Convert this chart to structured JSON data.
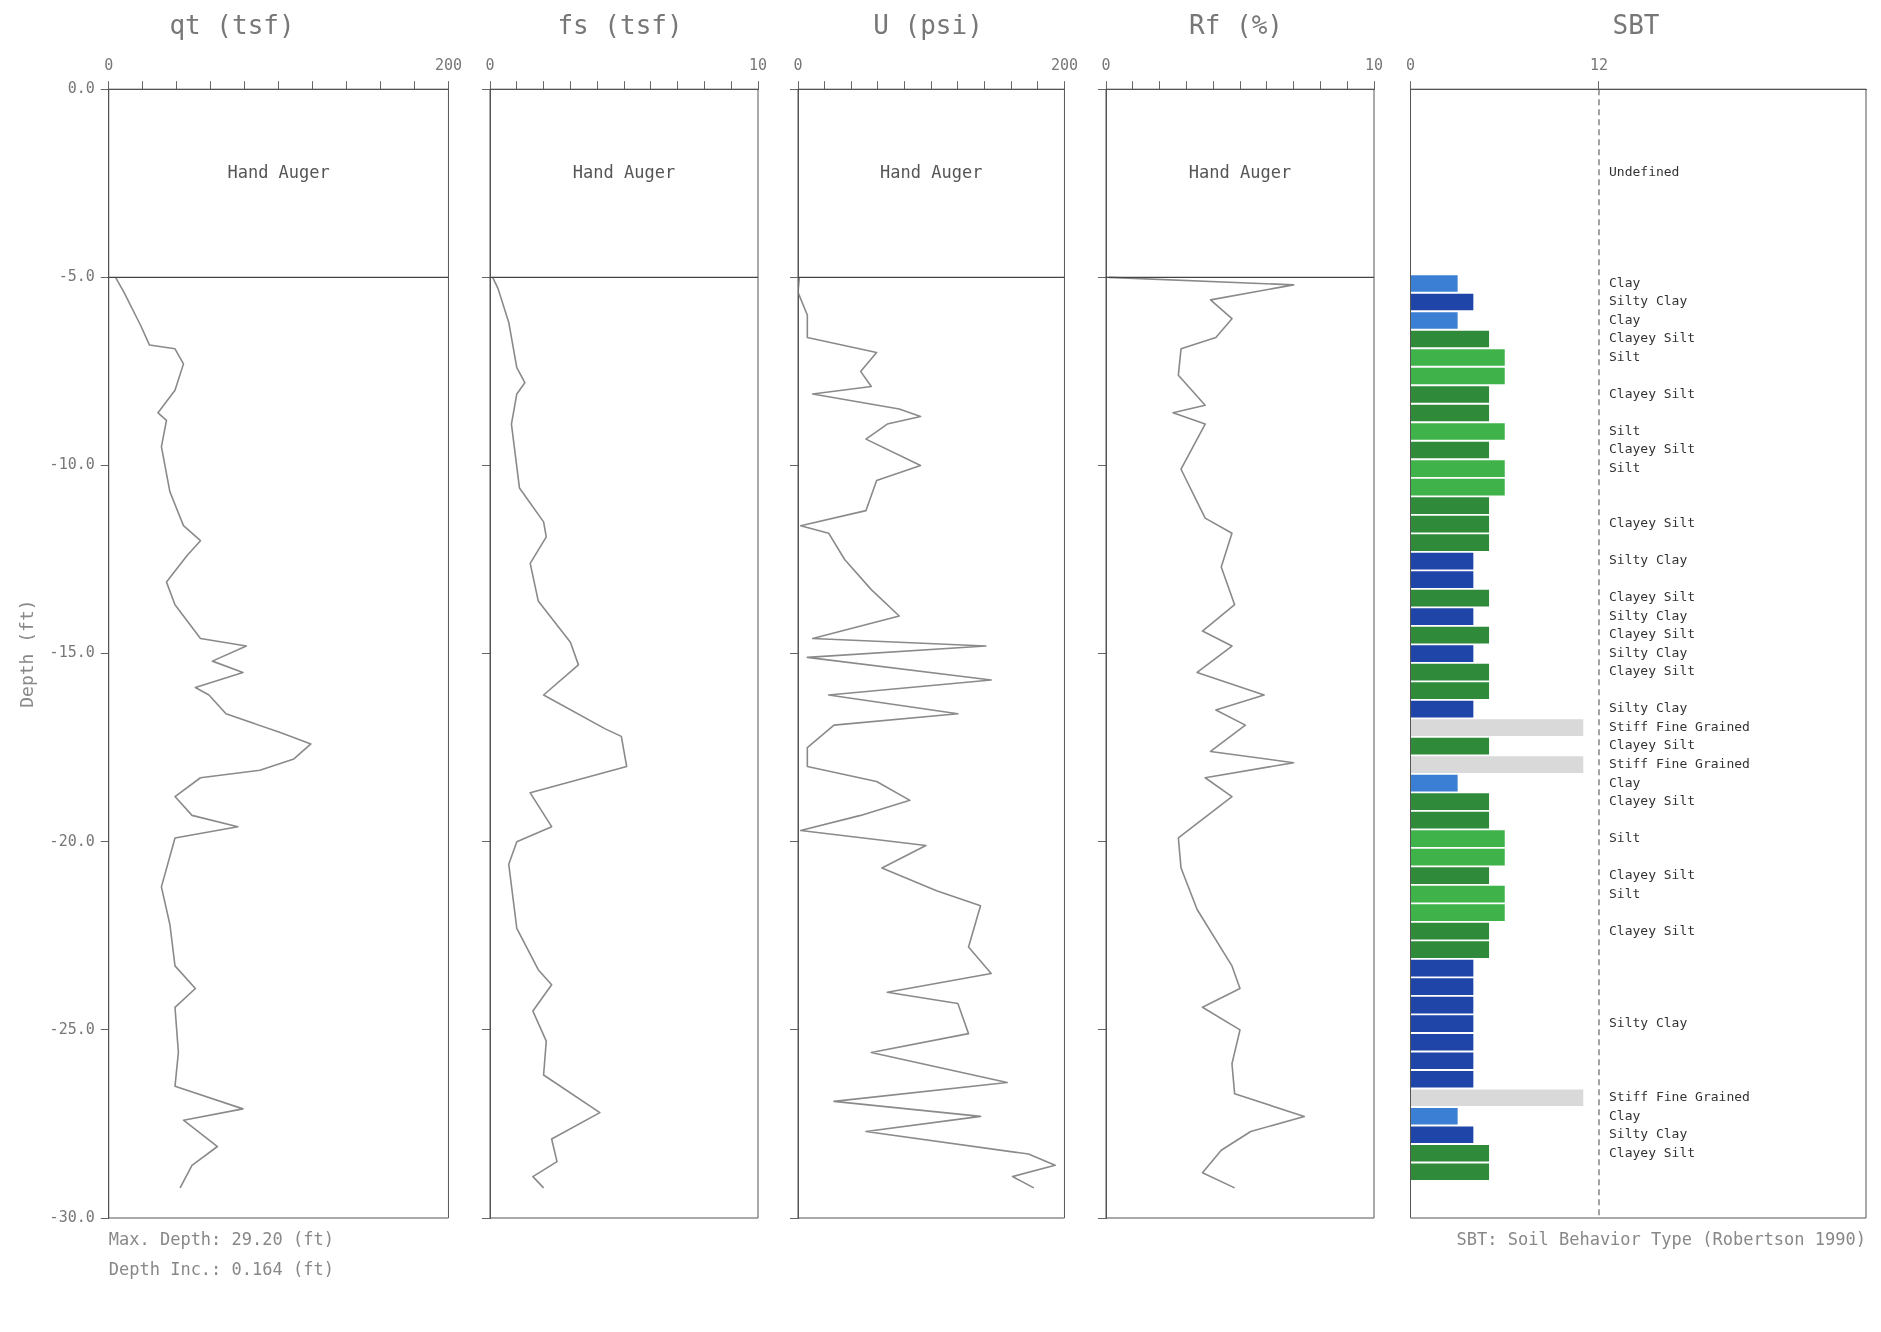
{
  "chart_data": [
    {
      "type": "line",
      "title": "qt (tsf)",
      "ylabel": "Depth (ft)",
      "marker": "none",
      "color": "#8a8a8a",
      "x": [
        4,
        9,
        19,
        24,
        39,
        44,
        39,
        29,
        34,
        31,
        36,
        44,
        54,
        46,
        34,
        39,
        54,
        81,
        61,
        79,
        51,
        59,
        69,
        101,
        119,
        109,
        89,
        54,
        39,
        49,
        76,
        39,
        31,
        36,
        39,
        51,
        39,
        41,
        39,
        79,
        44,
        64,
        49,
        42
      ],
      "values": [
        -5.0,
        -5.4,
        -6.3,
        -6.8,
        -6.9,
        -7.3,
        -8.0,
        -8.6,
        -8.8,
        -9.5,
        -10.7,
        -11.6,
        -12.0,
        -12.4,
        -13.1,
        -13.7,
        -14.6,
        -14.8,
        -15.2,
        -15.5,
        -15.9,
        -16.1,
        -16.6,
        -17.1,
        -17.4,
        -17.8,
        -18.1,
        -18.3,
        -18.8,
        -19.3,
        -19.6,
        -19.9,
        -21.2,
        -22.2,
        -23.3,
        -23.9,
        -24.4,
        -25.6,
        -26.5,
        -27.1,
        -27.4,
        -28.1,
        -28.6,
        -29.2
      ],
      "xlim": [
        0,
        200
      ],
      "xticks": [
        0,
        {
          "value": 20,
          "label": null
        },
        {
          "value": 40,
          "label": null
        },
        {
          "value": 60,
          "label": null
        },
        {
          "value": 80,
          "label": null
        },
        {
          "value": 100,
          "label": null
        },
        {
          "value": 120,
          "label": null
        },
        {
          "value": 140,
          "label": null
        },
        {
          "value": 160,
          "label": null
        },
        {
          "value": 180,
          "label": null
        },
        200
      ],
      "ylim": [
        -30,
        0
      ],
      "yticks": [
        {
          "value": 0,
          "label": "0.0"
        },
        {
          "value": -5,
          "label": "-5.0"
        },
        {
          "value": -10,
          "label": "-10.0"
        },
        {
          "value": -15,
          "label": "-15.0"
        },
        {
          "value": -20,
          "label": "-20.0"
        },
        {
          "value": -25,
          "label": "-25.0"
        },
        {
          "value": -30,
          "label": "-30.0"
        }
      ],
      "ref_lines": [
        {
          "axis": "y",
          "value": -5,
          "label": "Hand Auger"
        }
      ],
      "annotations": [
        "Max. Depth: 29.20 (ft)",
        "Depth Inc.: 0.164 (ft)"
      ]
    },
    {
      "type": "line",
      "title": "fs (tsf)",
      "marker": "none",
      "color": "#8a8a8a",
      "tick_labels": "x",
      "x": [
        0.1,
        0.3,
        0.7,
        1.0,
        1.3,
        1.0,
        0.8,
        1.1,
        2.0,
        2.1,
        1.5,
        1.8,
        3.0,
        3.3,
        2.0,
        4.3,
        4.9,
        5.1,
        1.5,
        2.3,
        1.0,
        0.7,
        1.0,
        1.8,
        2.3,
        1.6,
        2.1,
        2.0,
        4.1,
        2.3,
        2.5,
        1.6,
        2.0
      ],
      "values": [
        -5.0,
        -5.3,
        -6.2,
        -7.4,
        -7.8,
        -8.1,
        -8.9,
        -10.6,
        -11.5,
        -11.9,
        -12.6,
        -13.6,
        -14.7,
        -15.3,
        -16.1,
        -17.0,
        -17.2,
        -18.0,
        -18.7,
        -19.6,
        -20.0,
        -20.6,
        -22.3,
        -23.4,
        -23.8,
        -24.5,
        -25.3,
        -26.2,
        -27.2,
        -27.9,
        -28.5,
        -28.9,
        -29.2
      ],
      "xlim": [
        0,
        10
      ],
      "xticks": [
        0,
        {
          "value": 1,
          "label": null
        },
        {
          "value": 2,
          "label": null
        },
        {
          "value": 3,
          "label": null
        },
        {
          "value": 4,
          "label": null
        },
        {
          "value": 5,
          "label": null
        },
        {
          "value": 6,
          "label": null
        },
        {
          "value": 7,
          "label": null
        },
        {
          "value": 8,
          "label": null
        },
        {
          "value": 9,
          "label": null
        },
        10
      ],
      "ylim": [
        -30,
        0
      ],
      "yticks": [
        0,
        -5,
        -10,
        -15,
        -20,
        -25,
        -30
      ],
      "ref_lines": [
        {
          "axis": "y",
          "value": -5,
          "label": "Hand Auger"
        }
      ]
    },
    {
      "type": "line",
      "title": "U (psi)",
      "marker": "none",
      "color": "#8a8a8a",
      "tick_labels": "x",
      "x": [
        1,
        0,
        7,
        7,
        59,
        47,
        55,
        11,
        76,
        92,
        67,
        51,
        92,
        59,
        51,
        2,
        23,
        35,
        55,
        76,
        11,
        141,
        7,
        145,
        23,
        120,
        27,
        7,
        7,
        59,
        84,
        47,
        2,
        96,
        63,
        104,
        137,
        128,
        145,
        67,
        120,
        128,
        55,
        157,
        27,
        137,
        51,
        173,
        193,
        161,
        177
      ],
      "values": [
        -5.0,
        -5.4,
        -6.0,
        -6.6,
        -7.0,
        -7.5,
        -7.9,
        -8.1,
        -8.5,
        -8.7,
        -8.9,
        -9.3,
        -10.0,
        -10.4,
        -11.2,
        -11.6,
        -11.8,
        -12.5,
        -13.3,
        -14.0,
        -14.6,
        -14.8,
        -15.1,
        -15.7,
        -16.1,
        -16.6,
        -16.9,
        -17.5,
        -18.0,
        -18.4,
        -18.9,
        -19.3,
        -19.7,
        -20.1,
        -20.7,
        -21.3,
        -21.7,
        -22.8,
        -23.5,
        -24.0,
        -24.3,
        -25.1,
        -25.6,
        -26.4,
        -26.9,
        -27.3,
        -27.7,
        -28.3,
        -28.6,
        -28.9,
        -29.2
      ],
      "xlim": [
        0,
        200
      ],
      "xticks": [
        0,
        {
          "value": 20,
          "label": null
        },
        {
          "value": 40,
          "label": null
        },
        {
          "value": 60,
          "label": null
        },
        {
          "value": 80,
          "label": null
        },
        {
          "value": 100,
          "label": null
        },
        {
          "value": 120,
          "label": null
        },
        {
          "value": 140,
          "label": null
        },
        {
          "value": 160,
          "label": null
        },
        {
          "value": 180,
          "label": null
        },
        200
      ],
      "ylim": [
        -30,
        0
      ],
      "yticks": [
        0,
        -5,
        -10,
        -15,
        -20,
        -25,
        -30
      ],
      "ref_lines": [
        {
          "axis": "y",
          "value": -5,
          "label": "Hand Auger"
        }
      ]
    },
    {
      "type": "line",
      "title": "Rf (%)",
      "marker": "none",
      "color": "#8a8a8a",
      "tick_labels": "x",
      "x": [
        0.1,
        7.0,
        3.9,
        4.7,
        4.1,
        2.8,
        2.7,
        3.7,
        2.5,
        3.7,
        2.8,
        3.7,
        4.7,
        4.3,
        4.8,
        3.6,
        4.7,
        3.4,
        5.9,
        4.1,
        5.2,
        3.9,
        7.0,
        3.7,
        4.7,
        2.7,
        2.8,
        3.4,
        4.7,
        5.0,
        3.6,
        5.0,
        4.7,
        4.8,
        7.4,
        5.4,
        4.3,
        3.6,
        4.8
      ],
      "values": [
        -5.0,
        -5.2,
        -5.6,
        -6.1,
        -6.6,
        -6.9,
        -7.6,
        -8.4,
        -8.6,
        -8.9,
        -10.1,
        -11.4,
        -11.8,
        -12.7,
        -13.7,
        -14.4,
        -14.8,
        -15.5,
        -16.1,
        -16.5,
        -16.9,
        -17.6,
        -17.9,
        -18.3,
        -18.8,
        -19.9,
        -20.7,
        -21.8,
        -23.3,
        -23.9,
        -24.4,
        -25.0,
        -25.9,
        -26.7,
        -27.3,
        -27.7,
        -28.2,
        -28.8,
        -29.2
      ],
      "xlim": [
        0,
        10
      ],
      "xticks": [
        0,
        {
          "value": 1,
          "label": null
        },
        {
          "value": 2,
          "label": null
        },
        {
          "value": 3,
          "label": null
        },
        {
          "value": 4,
          "label": null
        },
        {
          "value": 5,
          "label": null
        },
        {
          "value": 6,
          "label": null
        },
        {
          "value": 7,
          "label": null
        },
        {
          "value": 8,
          "label": null
        },
        {
          "value": 9,
          "label": null
        },
        10
      ],
      "ylim": [
        -30,
        0
      ],
      "yticks": [
        0,
        -5,
        -10,
        -15,
        -20,
        -25,
        -30
      ],
      "ref_lines": [
        {
          "axis": "y",
          "value": -5,
          "label": "Hand Auger"
        }
      ]
    },
    {
      "type": "bar",
      "title": "SBT",
      "orientation": "horizontal",
      "categories": [
        null,
        null,
        null,
        null,
        "Undefined",
        null,
        null,
        null,
        null,
        null,
        "Clay",
        "Silty Clay",
        "Clay",
        "Clayey Silt",
        "Silt",
        null,
        "Clayey Silt",
        null,
        "Silt",
        "Clayey Silt",
        "Silt",
        null,
        null,
        "Clayey Silt",
        null,
        "Silty Clay",
        null,
        "Clayey Silt",
        "Silty Clay",
        "Clayey Silt",
        "Silty Clay",
        "Clayey Silt",
        null,
        "Silty Clay",
        "Stiff Fine Grained",
        "Clayey Silt",
        "Stiff Fine Grained",
        "Clay",
        "Clayey Silt",
        null,
        "Silt",
        null,
        "Clayey Silt",
        "Silt",
        null,
        "Clayey Silt",
        null,
        null,
        null,
        null,
        "Silty Clay",
        null,
        null,
        null,
        "Stiff Fine Grained",
        "Clay",
        "Silty Clay",
        "Clayey Silt",
        null,
        null,
        null
      ],
      "values": [
        null,
        null,
        null,
        null,
        null,
        null,
        null,
        null,
        null,
        null,
        3,
        4,
        3,
        5,
        6,
        6,
        5,
        5,
        6,
        5,
        6,
        6,
        5,
        5,
        5,
        4,
        4,
        5,
        4,
        5,
        4,
        5,
        5,
        4,
        11,
        5,
        11,
        3,
        5,
        5,
        6,
        6,
        5,
        6,
        6,
        5,
        5,
        4,
        4,
        4,
        4,
        4,
        4,
        4,
        11,
        3,
        4,
        5,
        5,
        null,
        null
      ],
      "colors": [
        null,
        null,
        null,
        null,
        null,
        null,
        null,
        null,
        null,
        null,
        "#3b7fd4",
        "#1f45a8",
        "#3b7fd4",
        "#2f8a3a",
        "#3fb34a",
        "#3fb34a",
        "#2f8a3a",
        "#2f8a3a",
        "#3fb34a",
        "#2f8a3a",
        "#3fb34a",
        "#3fb34a",
        "#2f8a3a",
        "#2f8a3a",
        "#2f8a3a",
        "#1f45a8",
        "#1f45a8",
        "#2f8a3a",
        "#1f45a8",
        "#2f8a3a",
        "#1f45a8",
        "#2f8a3a",
        "#2f8a3a",
        "#1f45a8",
        "#d9d9d9",
        "#2f8a3a",
        "#d9d9d9",
        "#3b7fd4",
        "#2f8a3a",
        "#2f8a3a",
        "#3fb34a",
        "#3fb34a",
        "#2f8a3a",
        "#3fb34a",
        "#3fb34a",
        "#2f8a3a",
        "#2f8a3a",
        "#1f45a8",
        "#1f45a8",
        "#1f45a8",
        "#1f45a8",
        "#1f45a8",
        "#1f45a8",
        "#1f45a8",
        "#d9d9d9",
        "#3b7fd4",
        "#1f45a8",
        "#2f8a3a",
        "#2f8a3a",
        null,
        null
      ],
      "xlim": [
        0,
        29
      ],
      "xticks": [
        0,
        12
      ],
      "ref_lines": [
        {
          "axis": "x",
          "value": 12,
          "line_style": "dashed"
        }
      ],
      "annotations": [
        "SBT: Soil Behavior Type (Robertson 1990)"
      ]
    }
  ]
}
